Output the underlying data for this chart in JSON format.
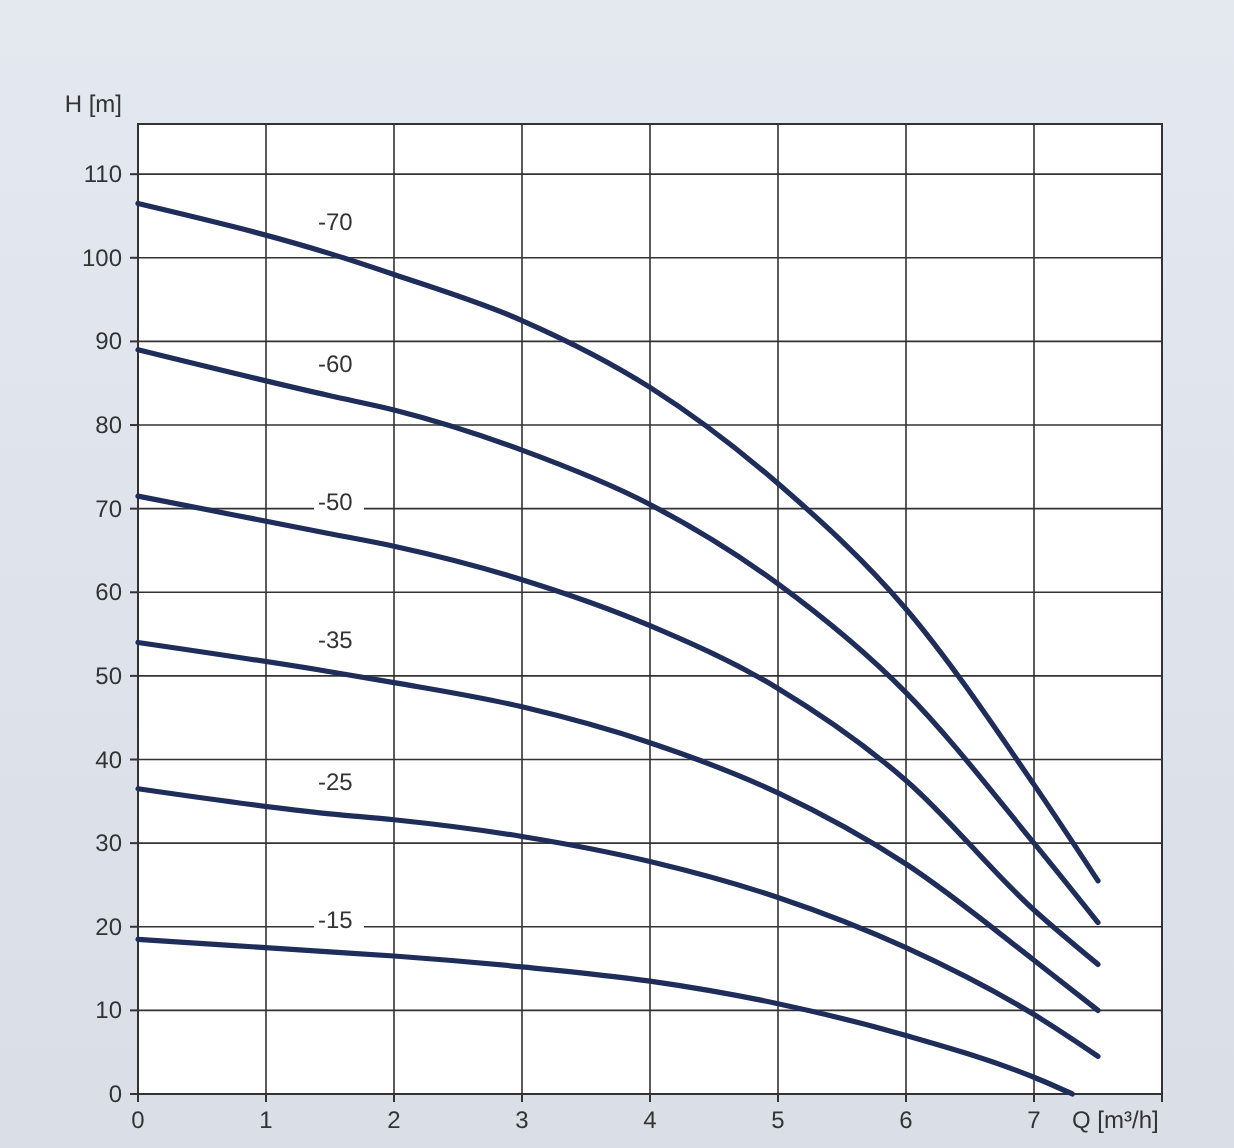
{
  "chart_data": {
    "type": "line",
    "xlabel": "Q [m³/h]",
    "ylabel": "H [m]",
    "xlim": [
      0,
      8
    ],
    "ylim": [
      0,
      116
    ],
    "xticks": [
      0,
      1,
      2,
      3,
      4,
      5,
      6,
      7,
      {
        "value": 8,
        "label": null
      }
    ],
    "yticks": [
      0,
      10,
      20,
      30,
      40,
      50,
      60,
      70,
      80,
      90,
      100,
      110
    ],
    "grid": true,
    "series": [
      {
        "name": "-70",
        "color": "#1f2d5a",
        "x": [
          0,
          1.5,
          2,
          3,
          4,
          5,
          6,
          7,
          7.5
        ],
        "values": [
          106.5,
          100.5,
          98,
          92.5,
          84.5,
          73,
          58,
          37,
          25.5
        ]
      },
      {
        "name": "-60",
        "color": "#1f2d5a",
        "x": [
          0,
          1.5,
          2,
          3,
          4,
          5,
          6,
          7,
          7.5
        ],
        "values": [
          89,
          83.5,
          81.8,
          77,
          70.5,
          61,
          48,
          30,
          20.5
        ]
      },
      {
        "name": "-50",
        "color": "#1f2d5a",
        "x": [
          0,
          1.5,
          2,
          3,
          4,
          5,
          6,
          7,
          7.5
        ],
        "values": [
          71.5,
          67,
          65.5,
          61.5,
          56,
          48.5,
          37.5,
          22,
          15.5
        ]
      },
      {
        "name": "-35",
        "color": "#1f2d5a",
        "x": [
          0,
          1.5,
          2,
          3,
          4,
          5,
          6,
          7,
          7.5
        ],
        "values": [
          54,
          50.5,
          49.2,
          46.3,
          42,
          36,
          27.5,
          16,
          10
        ]
      },
      {
        "name": "-25",
        "color": "#1f2d5a",
        "x": [
          0,
          1.5,
          2,
          3,
          4,
          5,
          6,
          7,
          7.5
        ],
        "values": [
          36.5,
          33.5,
          32.8,
          30.8,
          27.8,
          23.5,
          17.5,
          9.5,
          4.5
        ]
      },
      {
        "name": "-15",
        "color": "#1f2d5a",
        "x": [
          0,
          1.5,
          2,
          3,
          4,
          5,
          6,
          7,
          7.3
        ],
        "values": [
          18.5,
          17,
          16.5,
          15.2,
          13.5,
          10.8,
          7,
          2,
          0
        ]
      }
    ]
  }
}
